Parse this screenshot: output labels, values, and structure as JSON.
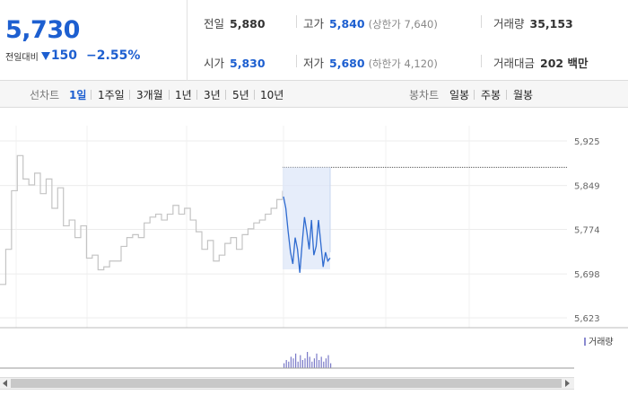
{
  "quote": {
    "price": "5,730",
    "change_label": "전일대비",
    "change_amount": "150",
    "change_pct": "−2.55%",
    "direction": "down",
    "colors": {
      "down": "#1d5fd0",
      "up": "#e0322b"
    },
    "stats": {
      "prev_close": {
        "label": "전일",
        "value": "5,880"
      },
      "high": {
        "label": "고가",
        "value": "5,840",
        "sub": "(상한가 7,640)"
      },
      "volume": {
        "label": "거래량",
        "value": "35,153"
      },
      "open": {
        "label": "시가",
        "value": "5,830"
      },
      "low": {
        "label": "저가",
        "value": "5,680",
        "sub": "(하한가 4,120)"
      },
      "amount": {
        "label": "거래대금",
        "value": "202 백만"
      }
    }
  },
  "period_bar": {
    "line_label": "선차트",
    "line_periods": [
      "1일",
      "1주일",
      "3개월",
      "1년",
      "3년",
      "5년",
      "10년"
    ],
    "active_period": "1일",
    "candle_label": "봉차트",
    "candle_periods": [
      "일봉",
      "주봉",
      "월봉"
    ]
  },
  "chart_data": {
    "type": "line",
    "y_ticks": [
      "5,925",
      "5,849",
      "5,774",
      "5,698",
      "5,623"
    ],
    "ylim": [
      5623,
      5925
    ],
    "volume_legend": "거래량",
    "series": [
      {
        "values": [
          5680,
          5740,
          5840,
          5900,
          5860,
          5850,
          5870,
          5835,
          5860,
          5810,
          5845,
          5780,
          5790,
          5760,
          5780,
          5725,
          5730,
          5705,
          5710,
          5720,
          5720,
          5745,
          5760,
          5765,
          5760,
          5785,
          5795,
          5800,
          5790,
          5800,
          5815,
          5800,
          5810,
          5790,
          5770,
          5740,
          5755,
          5720,
          5730,
          5750,
          5760,
          5740,
          5765,
          5775,
          5785,
          5790,
          5800,
          5810,
          5825,
          5840
        ]
      },
      {
        "values": [
          5830,
          5810,
          5770,
          5735,
          5715,
          5760,
          5740,
          5700,
          5750,
          5795,
          5770,
          5740,
          5790,
          5730,
          5745,
          5790,
          5750,
          5710,
          5735,
          5720,
          5725
        ]
      }
    ],
    "reference_line": 5880,
    "volume": [
      3,
      5,
      4,
      7,
      6,
      9,
      4,
      8,
      5,
      6,
      10,
      7,
      4,
      6,
      9,
      5,
      7,
      4,
      6,
      8,
      3
    ]
  }
}
